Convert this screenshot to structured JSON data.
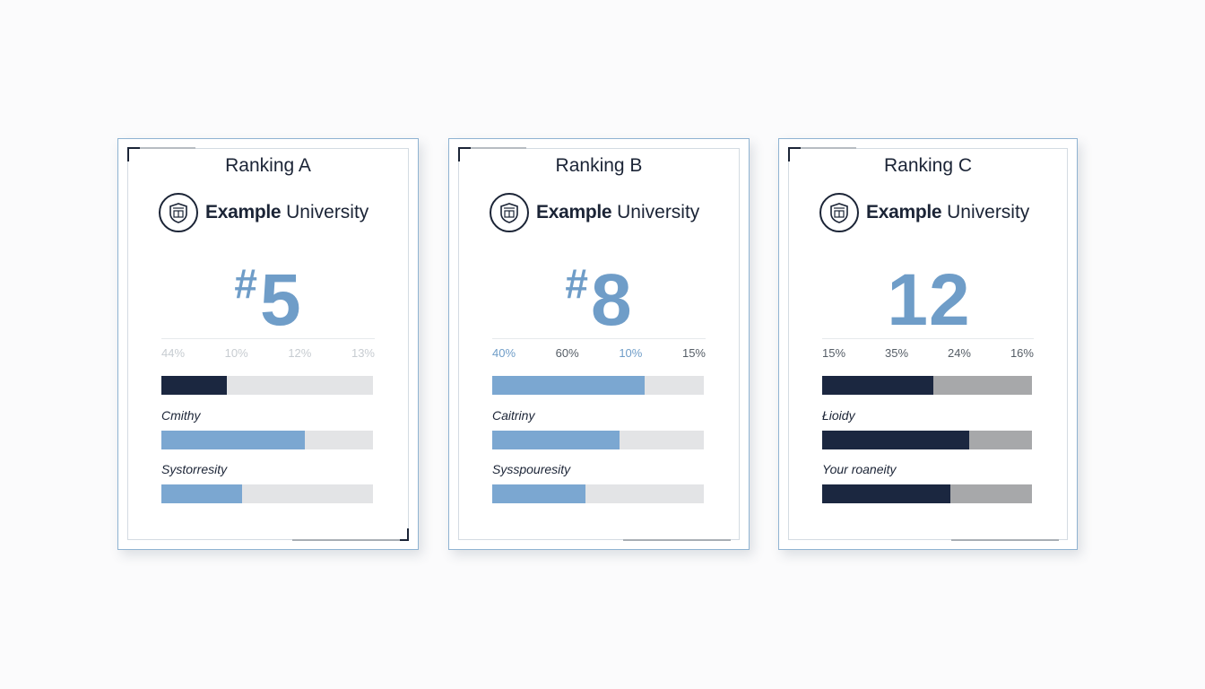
{
  "colors": {
    "navy": "#1b2740",
    "accent_blue": "#6f9dc8",
    "bar_blue": "#7ba7d1",
    "track_light": "#e3e4e6",
    "track_gray": "#a7a8aa",
    "card_border": "#8fb3d2"
  },
  "cards": [
    {
      "title": "Ranking A",
      "university": {
        "name_bold": "Example",
        "name_regular": "University",
        "crest_icon": "university-crest-icon"
      },
      "rank": {
        "hash": "#",
        "value": "5"
      },
      "ticks": [
        "44%",
        "10%",
        "12%",
        "13%"
      ],
      "bars": [
        {
          "label": "",
          "value": 0.31,
          "fill_color": "navy"
        },
        {
          "label": "Cmithy",
          "value": 0.68,
          "fill_color": "blue"
        },
        {
          "label": "Systorresity",
          "value": 0.38,
          "fill_color": "blue"
        }
      ]
    },
    {
      "title": "Ranking B",
      "university": {
        "name_bold": "Example",
        "name_regular": "University",
        "crest_icon": "university-crest-icon"
      },
      "rank": {
        "hash": "#",
        "value": "8"
      },
      "ticks": [
        "40%",
        "60%",
        "10%",
        "15%"
      ],
      "bars": [
        {
          "label": "",
          "value": 0.72,
          "fill_color": "blue"
        },
        {
          "label": "Caitriny",
          "value": 0.6,
          "fill_color": "blue"
        },
        {
          "label": "Sysspouresity",
          "value": 0.44,
          "fill_color": "blue"
        }
      ]
    },
    {
      "title": "Ranking C",
      "university": {
        "name_bold": "Example",
        "name_regular": "University",
        "crest_icon": "university-crest-icon"
      },
      "rank": {
        "hash": "",
        "value": "12"
      },
      "ticks": [
        "15%",
        "35%",
        "24%",
        "16%"
      ],
      "bars": [
        {
          "label": "",
          "value": 0.53,
          "fill_color": "navy"
        },
        {
          "label": "Łioidy",
          "value": 0.7,
          "fill_color": "navy"
        },
        {
          "label": "Your roaneity",
          "value": 0.61,
          "fill_color": "navy"
        }
      ]
    }
  ]
}
